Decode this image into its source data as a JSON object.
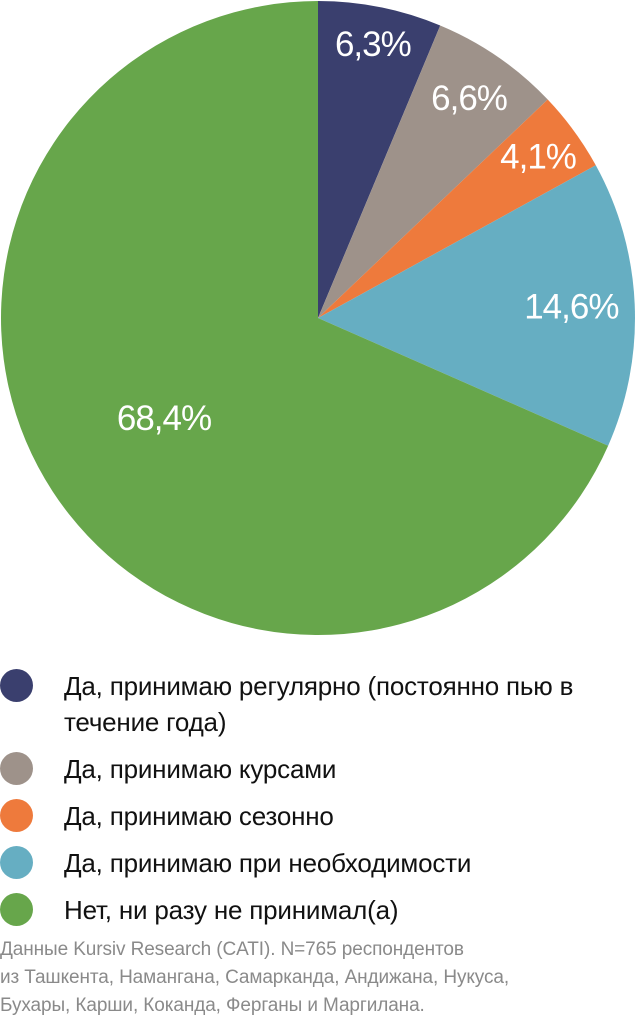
{
  "chart_data": {
    "type": "pie",
    "title": "",
    "start_angle_deg": 0,
    "direction": "clockwise",
    "slices": [
      {
        "label": "Да, принимаю регулярно (постоянно пью в течение года)",
        "value": 6.3,
        "display": "6,3%",
        "color": "#3a3f6e"
      },
      {
        "label": "Да, принимаю курсами",
        "value": 6.6,
        "display": "6,6%",
        "color": "#9e928a"
      },
      {
        "label": "Да, принимаю сезонно",
        "value": 4.1,
        "display": "4,1%",
        "color": "#ee7a3c"
      },
      {
        "label": "Да, принимаю при необходимости",
        "value": 14.6,
        "display": "14,6%",
        "color": "#66aec2"
      },
      {
        "label": "Нет, ни разу не принимал(а)",
        "value": 68.4,
        "display": "68,4%",
        "color": "#67a64b"
      }
    ]
  },
  "legend": {
    "items": [
      {
        "label": "Да, принимаю регулярно (постоянно пью в течение года)",
        "color": "#3a3f6e"
      },
      {
        "label": "Да, принимаю курсами",
        "color": "#9e928a"
      },
      {
        "label": "Да, принимаю сезонно",
        "color": "#ee7a3c"
      },
      {
        "label": "Да, принимаю при необходимости",
        "color": "#66aec2"
      },
      {
        "label": "Нет, ни разу не принимал(а)",
        "color": "#67a64b"
      }
    ]
  },
  "source": {
    "lines": [
      "Данные Kursiv Research (CATI). N=765 респондентов",
      "из Ташкента, Намангана, Самарканда, Андижана, Нукуса,",
      "Бухары, Карши, Коканда, Ферганы и Маргилана."
    ]
  }
}
